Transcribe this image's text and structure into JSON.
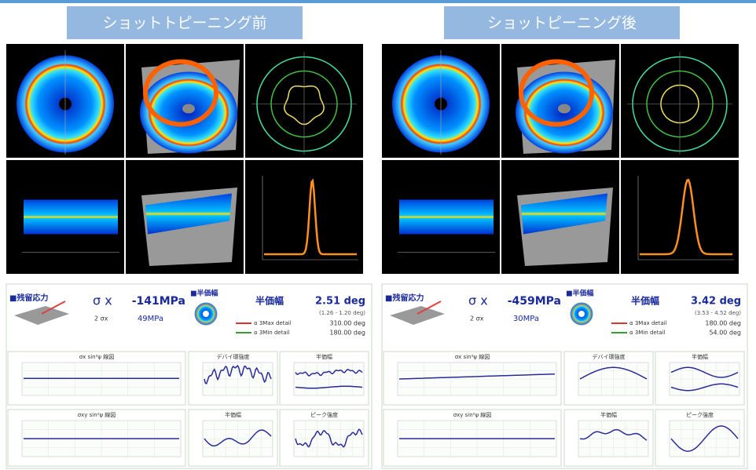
{
  "panels": [
    {
      "title": "ショットトピーニング前",
      "stress_label": "■残留応力",
      "stress_symbol": "σ x",
      "stress_value": "-141MPa",
      "error_label": "2 σx",
      "error_value": "49MPa",
      "fwhm_label": "■半価幅",
      "fwhm_title": "半価幅",
      "fwhm_value": "2.51 deg",
      "fwhm_range": "(1.26 - 1.20 deg)",
      "max_label": "α 3Max detail",
      "max_value": "310.00 deg",
      "min_label": "α 3Min detail",
      "min_value": "180.00 deg",
      "charts": [
        "σx sin²ψ 線図",
        "σxy sin²ψ 線図",
        "デバイ環強度",
        "半価幅",
        "半価幅",
        "ピーク強度"
      ]
    },
    {
      "title": "ショットピーニング後",
      "stress_label": "■残留応力",
      "stress_symbol": "σ x",
      "stress_value": "-459MPa",
      "error_label": "2 σx",
      "error_value": "30MPa",
      "fwhm_label": "■半価幅",
      "fwhm_title": "半価幅",
      "fwhm_value": "3.42 deg",
      "fwhm_range": "(3.53 - 4.52 deg)",
      "max_label": "α 3Max detail",
      "max_value": "180.00 deg",
      "min_label": "α 3Min detail",
      "min_value": "54.00 deg",
      "charts": [
        "σx sin²ψ 線図",
        "σxy sin²ψ 線図",
        "デバイ環強度",
        "半価幅",
        "半価幅",
        "ピーク強度"
      ]
    }
  ]
}
